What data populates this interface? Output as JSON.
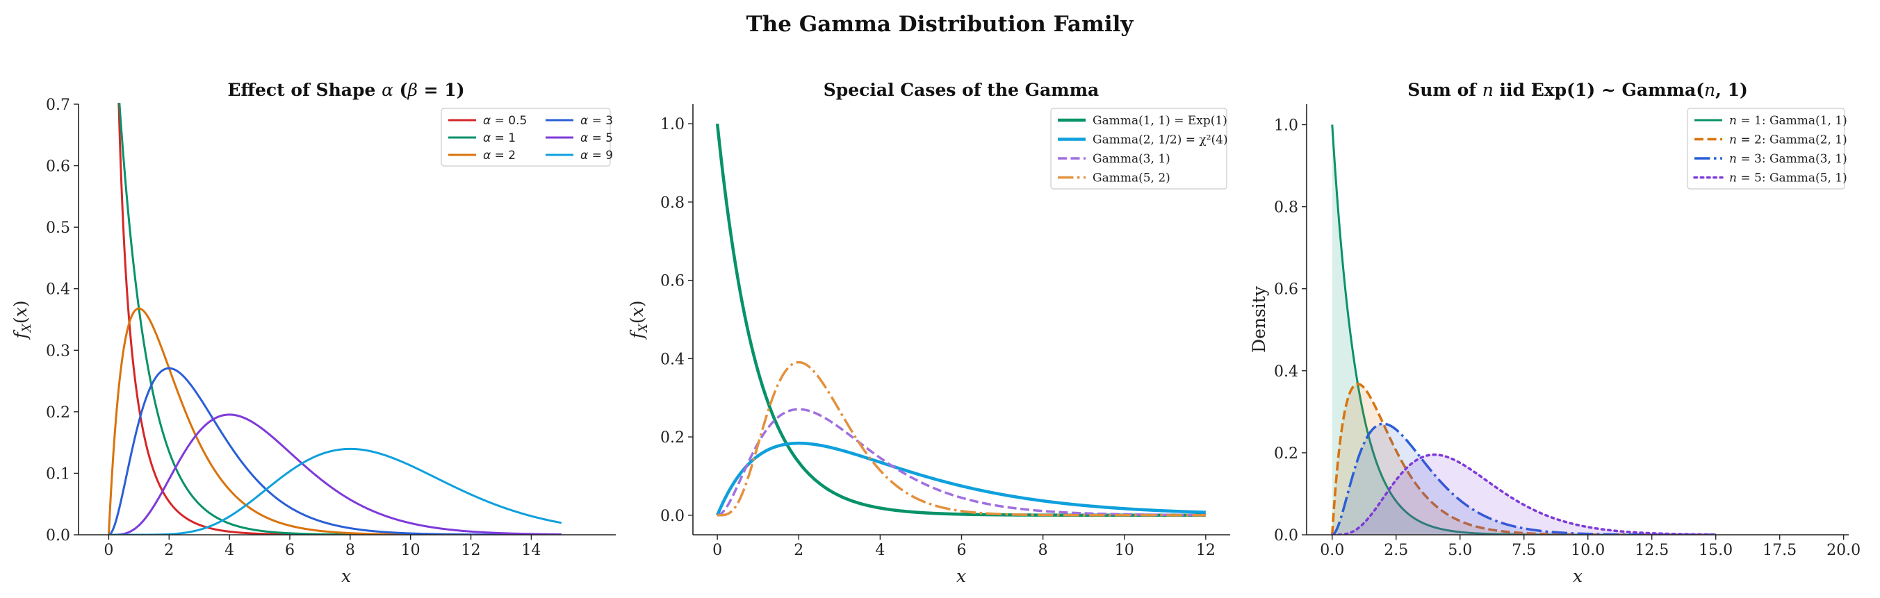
{
  "figure": {
    "suptitle": "The Gamma Distribution Family"
  },
  "chart_data": [
    {
      "type": "line",
      "title_parts": [
        "Effect of Shape ",
        "α",
        " (",
        "β",
        " = 1)"
      ],
      "xlabel": "x",
      "ylabel": "f_X(x)",
      "xlim": [
        -1,
        16.8
      ],
      "ylim": [
        0,
        0.7
      ],
      "xticks": [
        0,
        2,
        4,
        6,
        8,
        10,
        12,
        14
      ],
      "yticks": [
        0.0,
        0.1,
        0.2,
        0.3,
        0.4,
        0.5,
        0.6,
        0.7
      ],
      "x_range": [
        0,
        15
      ],
      "legend_position": "upper right",
      "legend_columns": 2,
      "series": [
        {
          "name": "α = 0.5",
          "color": "#d62728",
          "dist": {
            "shape": 0.5,
            "rate": 1
          },
          "dash": "solid",
          "width": 3,
          "legend_col": 0,
          "legend_row": 0
        },
        {
          "name": "α = 1",
          "color": "#079269",
          "dist": {
            "shape": 1,
            "rate": 1
          },
          "dash": "solid",
          "width": 3,
          "legend_col": 0,
          "legend_row": 1
        },
        {
          "name": "α = 2",
          "color": "#d9730d",
          "dist": {
            "shape": 2,
            "rate": 1
          },
          "dash": "solid",
          "width": 3,
          "legend_col": 0,
          "legend_row": 2
        },
        {
          "name": "α = 3",
          "color": "#2a5fd6",
          "dist": {
            "shape": 3,
            "rate": 1
          },
          "dash": "solid",
          "width": 3,
          "legend_col": 1,
          "legend_row": 0
        },
        {
          "name": "α = 5",
          "color": "#7e3ad9",
          "dist": {
            "shape": 5,
            "rate": 1
          },
          "dash": "solid",
          "width": 3,
          "legend_col": 1,
          "legend_row": 1
        },
        {
          "name": "α = 9",
          "color": "#0fa0dc",
          "dist": {
            "shape": 9,
            "rate": 1
          },
          "dash": "solid",
          "width": 3,
          "legend_col": 1,
          "legend_row": 2
        }
      ]
    },
    {
      "type": "line",
      "title": "Special Cases of the Gamma",
      "xlabel": "x",
      "ylabel": "f_X(x)",
      "xlim": [
        -0.6,
        12.6
      ],
      "ylim": [
        -0.05,
        1.05
      ],
      "xticks": [
        0,
        2,
        4,
        6,
        8,
        10,
        12
      ],
      "yticks": [
        0.0,
        0.2,
        0.4,
        0.6,
        0.8,
        1.0
      ],
      "x_range": [
        0,
        12
      ],
      "legend_position": "upper right",
      "legend_columns": 1,
      "series": [
        {
          "name": "Gamma(1, 1) = Exp(1)",
          "color": "#079269",
          "dist": {
            "shape": 1,
            "rate": 1
          },
          "dash": "solid",
          "width": 4.5
        },
        {
          "name": "Gamma(2, 1/2) = χ²(4)",
          "color": "#0fa0dc",
          "dist": {
            "shape": 2,
            "rate": 0.5
          },
          "dash": "solid",
          "width": 4.5
        },
        {
          "name": "Gamma(3, 1)",
          "color": "#a070e0",
          "dist": {
            "shape": 3,
            "rate": 1
          },
          "dash": "dashed",
          "width": 3.5
        },
        {
          "name": "Gamma(5, 2)",
          "color": "#e3913e",
          "dist": {
            "shape": 5,
            "rate": 2
          },
          "dash": "dashdot",
          "width": 3.5
        }
      ]
    },
    {
      "type": "area",
      "title_parts": [
        "Sum of ",
        "n",
        " iid Exp(1) ~ Gamma(",
        "n",
        ", 1)"
      ],
      "xlabel": "x",
      "ylabel": "Density",
      "xlim": [
        -1,
        20.2
      ],
      "ylim": [
        0,
        1.05
      ],
      "xticks": [
        0.0,
        2.5,
        5.0,
        7.5,
        10.0,
        12.5,
        15.0,
        17.5,
        20.0
      ],
      "yticks": [
        0.0,
        0.2,
        0.4,
        0.6,
        0.8,
        1.0
      ],
      "x_range": [
        0,
        15
      ],
      "legend_position": "upper right",
      "legend_columns": 1,
      "series": [
        {
          "name": "n = 1: Gamma(1, 1)",
          "n": 1,
          "color": "#079269",
          "dist": {
            "shape": 1,
            "rate": 1
          },
          "dash": "solid",
          "width": 3
        },
        {
          "name": "n = 2: Gamma(2, 1)",
          "n": 2,
          "color": "#d9730d",
          "dist": {
            "shape": 2,
            "rate": 1
          },
          "dash": "dashed",
          "width": 3.5
        },
        {
          "name": "n = 3: Gamma(3, 1)",
          "n": 3,
          "color": "#2a5fd6",
          "dist": {
            "shape": 3,
            "rate": 1
          },
          "dash": "dashdot",
          "width": 3.5
        },
        {
          "name": "n = 5: Gamma(5, 1)",
          "n": 5,
          "color": "#7e3ad9",
          "dist": {
            "shape": 5,
            "rate": 1
          },
          "dash": "dotted",
          "width": 3.5
        }
      ]
    }
  ]
}
